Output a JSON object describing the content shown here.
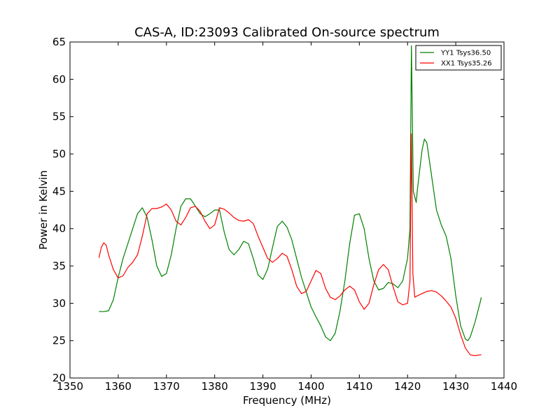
{
  "chart_data": {
    "type": "line",
    "title": "CAS-A, ID:23093 Calibrated On-source spectrum",
    "xlabel": "Frequency (MHz)",
    "ylabel": "Power in Kelvin",
    "xlim": [
      1350,
      1440
    ],
    "ylim": [
      20,
      65
    ],
    "xticks": [
      1350,
      1360,
      1370,
      1380,
      1390,
      1400,
      1410,
      1420,
      1430,
      1440
    ],
    "yticks": [
      20,
      25,
      30,
      35,
      40,
      45,
      50,
      55,
      60,
      65
    ],
    "grid": false,
    "legend": "top-right",
    "series": [
      {
        "name": "YY1 Tsys36.50",
        "color": "#008000",
        "points": [
          [
            1356,
            28.9
          ],
          [
            1357,
            28.9
          ],
          [
            1358,
            29.0
          ],
          [
            1359,
            30.5
          ],
          [
            1360,
            33.5
          ],
          [
            1361,
            36.0
          ],
          [
            1362,
            38.0
          ],
          [
            1363,
            40.0
          ],
          [
            1364,
            42.0
          ],
          [
            1365,
            42.8
          ],
          [
            1366,
            41.5
          ],
          [
            1367,
            38.5
          ],
          [
            1368,
            35.0
          ],
          [
            1369,
            33.6
          ],
          [
            1370,
            34.0
          ],
          [
            1371,
            36.5
          ],
          [
            1372,
            40.0
          ],
          [
            1373,
            43.0
          ],
          [
            1374,
            44.0
          ],
          [
            1375,
            44.0
          ],
          [
            1376,
            43.0
          ],
          [
            1377,
            42.0
          ],
          [
            1378,
            41.6
          ],
          [
            1379,
            42.0
          ],
          [
            1380,
            42.5
          ],
          [
            1381,
            42.5
          ],
          [
            1382,
            39.5
          ],
          [
            1383,
            37.2
          ],
          [
            1384,
            36.5
          ],
          [
            1385,
            37.2
          ],
          [
            1386,
            38.3
          ],
          [
            1387,
            38.0
          ],
          [
            1388,
            36.0
          ],
          [
            1389,
            33.8
          ],
          [
            1390,
            33.2
          ],
          [
            1391,
            34.6
          ],
          [
            1392,
            37.5
          ],
          [
            1393,
            40.3
          ],
          [
            1394,
            41.0
          ],
          [
            1395,
            40.2
          ],
          [
            1396,
            38.5
          ],
          [
            1397,
            36.0
          ],
          [
            1398,
            33.5
          ],
          [
            1399,
            31.5
          ],
          [
            1400,
            29.5
          ],
          [
            1401,
            28.2
          ],
          [
            1402,
            27.0
          ],
          [
            1403,
            25.5
          ],
          [
            1404,
            25.0
          ],
          [
            1405,
            26.0
          ],
          [
            1406,
            29.0
          ],
          [
            1407,
            33.0
          ],
          [
            1408,
            38.0
          ],
          [
            1409,
            41.8
          ],
          [
            1410,
            42.0
          ],
          [
            1411,
            40.0
          ],
          [
            1412,
            36.0
          ],
          [
            1413,
            33.0
          ],
          [
            1414,
            31.8
          ],
          [
            1415,
            32.0
          ],
          [
            1416,
            32.8
          ],
          [
            1417,
            32.6
          ],
          [
            1418,
            32.1
          ],
          [
            1419,
            33.0
          ],
          [
            1420,
            36.0
          ],
          [
            1420.5,
            40.0
          ],
          [
            1420.8,
            64.5
          ],
          [
            1421.2,
            45.0
          ],
          [
            1421.8,
            43.5
          ],
          [
            1422,
            45.0
          ],
          [
            1423,
            50.5
          ],
          [
            1423.5,
            52.0
          ],
          [
            1424,
            51.5
          ],
          [
            1425,
            47.0
          ],
          [
            1426,
            42.5
          ],
          [
            1427,
            40.5
          ],
          [
            1428,
            39.0
          ],
          [
            1429,
            36.0
          ],
          [
            1430,
            31.0
          ],
          [
            1431,
            27.0
          ],
          [
            1432,
            25.2
          ],
          [
            1432.5,
            25.0
          ],
          [
            1433,
            25.5
          ],
          [
            1434,
            27.5
          ],
          [
            1435,
            30.0
          ],
          [
            1435.3,
            30.8
          ]
        ]
      },
      {
        "name": "XX1 Tsys35.26",
        "color": "#ff0000",
        "points": [
          [
            1356,
            36.1
          ],
          [
            1356.5,
            37.5
          ],
          [
            1357,
            38.1
          ],
          [
            1357.5,
            37.8
          ],
          [
            1358,
            36.5
          ],
          [
            1359,
            34.5
          ],
          [
            1360,
            33.4
          ],
          [
            1361,
            33.7
          ],
          [
            1362,
            34.8
          ],
          [
            1363,
            35.5
          ],
          [
            1364,
            36.5
          ],
          [
            1365,
            39.0
          ],
          [
            1366,
            42.0
          ],
          [
            1367,
            42.7
          ],
          [
            1368,
            42.7
          ],
          [
            1369,
            42.9
          ],
          [
            1370,
            43.3
          ],
          [
            1371,
            42.5
          ],
          [
            1372,
            41.0
          ],
          [
            1373,
            40.5
          ],
          [
            1374,
            41.5
          ],
          [
            1375,
            42.8
          ],
          [
            1376,
            43.0
          ],
          [
            1377,
            42.3
          ],
          [
            1378,
            41.0
          ],
          [
            1379,
            40.0
          ],
          [
            1380,
            40.5
          ],
          [
            1381,
            42.8
          ],
          [
            1382,
            42.6
          ],
          [
            1383,
            42.1
          ],
          [
            1384,
            41.5
          ],
          [
            1385,
            41.1
          ],
          [
            1386,
            41.0
          ],
          [
            1387,
            41.2
          ],
          [
            1388,
            40.7
          ],
          [
            1389,
            39.0
          ],
          [
            1390,
            37.5
          ],
          [
            1391,
            36.0
          ],
          [
            1392,
            35.5
          ],
          [
            1393,
            36.0
          ],
          [
            1394,
            36.7
          ],
          [
            1395,
            36.3
          ],
          [
            1396,
            34.5
          ],
          [
            1397,
            32.3
          ],
          [
            1398,
            31.3
          ],
          [
            1399,
            31.6
          ],
          [
            1400,
            33.0
          ],
          [
            1401,
            34.4
          ],
          [
            1402,
            34.0
          ],
          [
            1403,
            32.0
          ],
          [
            1404,
            30.8
          ],
          [
            1405,
            30.5
          ],
          [
            1406,
            31.0
          ],
          [
            1407,
            31.8
          ],
          [
            1408,
            32.3
          ],
          [
            1409,
            31.8
          ],
          [
            1410,
            30.2
          ],
          [
            1411,
            29.2
          ],
          [
            1412,
            30.0
          ],
          [
            1413,
            32.5
          ],
          [
            1414,
            34.5
          ],
          [
            1415,
            35.2
          ],
          [
            1416,
            34.5
          ],
          [
            1417,
            32.2
          ],
          [
            1418,
            30.2
          ],
          [
            1419,
            29.8
          ],
          [
            1420,
            30.0
          ],
          [
            1420.5,
            33.0
          ],
          [
            1420.8,
            52.7
          ],
          [
            1421.1,
            34.0
          ],
          [
            1421.5,
            30.8
          ],
          [
            1422,
            31.0
          ],
          [
            1423,
            31.3
          ],
          [
            1424,
            31.6
          ],
          [
            1425,
            31.7
          ],
          [
            1426,
            31.5
          ],
          [
            1427,
            31.0
          ],
          [
            1428,
            30.3
          ],
          [
            1429,
            29.5
          ],
          [
            1430,
            28.0
          ],
          [
            1431,
            25.8
          ],
          [
            1432,
            24.0
          ],
          [
            1433,
            23.1
          ],
          [
            1434,
            23.0
          ],
          [
            1435,
            23.1
          ],
          [
            1435.3,
            23.1
          ]
        ]
      }
    ]
  }
}
